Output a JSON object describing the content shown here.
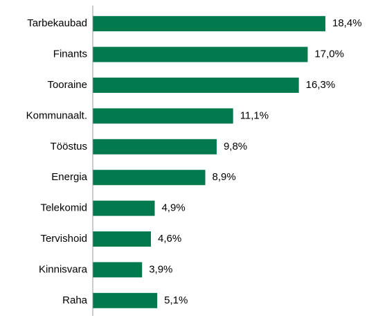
{
  "chart_data": {
    "type": "bar",
    "orientation": "horizontal",
    "categories": [
      "Tarbekaubad",
      "Finants",
      "Tooraine",
      "Kommunaalt.",
      "Tööstus",
      "Energia",
      "Telekomid",
      "Tervishoid",
      "Kinnisvara",
      "Raha"
    ],
    "values": [
      18.4,
      17.0,
      16.3,
      11.1,
      9.8,
      8.9,
      4.9,
      4.6,
      3.9,
      5.1
    ],
    "value_labels": [
      "18,4%",
      "17,0%",
      "16,3%",
      "11,1%",
      "9,8%",
      "8,9%",
      "4,9%",
      "4,6%",
      "3,9%",
      "5,1%"
    ],
    "color": "#007a4d"
  }
}
